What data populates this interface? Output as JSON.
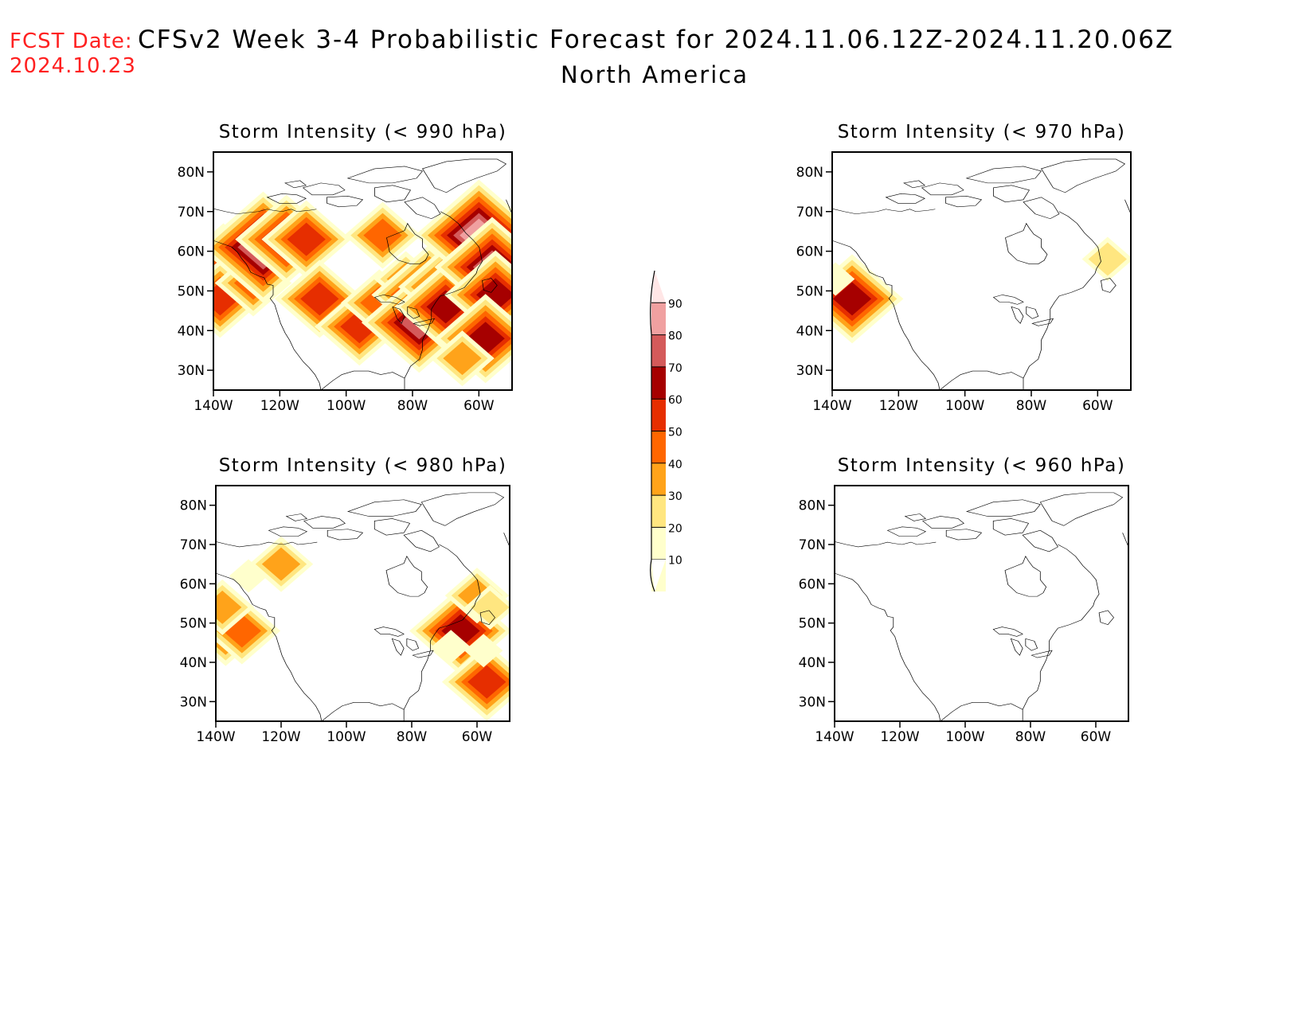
{
  "header": {
    "fcst_label": "FCST Date:",
    "fcst_date": "2024.10.23",
    "title": "CFSv2 Week 3-4 Probabilistic Forecast for 2024.11.06.12Z-2024.11.20.06Z",
    "region": "North America",
    "accent_color": "#ff2020"
  },
  "map_extent": {
    "lon": [
      -140,
      -50
    ],
    "lat": [
      25,
      85
    ]
  },
  "x_ticks": [
    "140W",
    "120W",
    "100W",
    "80W",
    "60W"
  ],
  "x_tick_values": [
    -140,
    -120,
    -100,
    -80,
    -60
  ],
  "y_ticks": [
    "80N",
    "70N",
    "60N",
    "50N",
    "40N",
    "30N"
  ],
  "y_tick_values": [
    80,
    70,
    60,
    50,
    40,
    30
  ],
  "panels": [
    {
      "title": "Storm Intensity (< 990 hPa)",
      "blobs": [
        {
          "lon": -137,
          "lat": 53,
          "value": 85
        },
        {
          "lon": -133,
          "lat": 56,
          "value": 65
        },
        {
          "lon": -138,
          "lat": 48,
          "value": 55
        },
        {
          "lon": -128,
          "lat": 52,
          "value": 45
        },
        {
          "lon": -125,
          "lat": 61,
          "value": 85
        },
        {
          "lon": -118,
          "lat": 63,
          "value": 65
        },
        {
          "lon": -112,
          "lat": 63,
          "value": 55
        },
        {
          "lon": -108,
          "lat": 48,
          "value": 55
        },
        {
          "lon": -96,
          "lat": 41,
          "value": 55
        },
        {
          "lon": -90,
          "lat": 47,
          "value": 45
        },
        {
          "lon": -89,
          "lat": 64,
          "value": 40
        },
        {
          "lon": -82,
          "lat": 53,
          "value": 30
        },
        {
          "lon": -75,
          "lat": 49,
          "value": 75
        },
        {
          "lon": -78,
          "lat": 42,
          "value": 70
        },
        {
          "lon": -65,
          "lat": 51,
          "value": 85
        },
        {
          "lon": -70,
          "lat": 46,
          "value": 60
        },
        {
          "lon": -60,
          "lat": 64,
          "value": 85
        },
        {
          "lon": -56,
          "lat": 56,
          "value": 70
        },
        {
          "lon": -55,
          "lat": 49,
          "value": 60
        },
        {
          "lon": -58,
          "lat": 38,
          "value": 65
        },
        {
          "lon": -65,
          "lat": 33,
          "value": 35
        }
      ]
    },
    {
      "title": "Storm Intensity (< 970 hPa)",
      "blobs": [
        {
          "lon": -134,
          "lat": 48,
          "value": 65
        },
        {
          "lon": -139,
          "lat": 53,
          "value": 15
        },
        {
          "lon": -57,
          "lat": 58,
          "value": 25
        }
      ]
    },
    {
      "title": "Storm Intensity (< 980 hPa)",
      "blobs": [
        {
          "lon": -137,
          "lat": 49,
          "value": 55
        },
        {
          "lon": -132,
          "lat": 48,
          "value": 45
        },
        {
          "lon": -138,
          "lat": 54,
          "value": 35
        },
        {
          "lon": -120,
          "lat": 65,
          "value": 35
        },
        {
          "lon": -130,
          "lat": 62,
          "value": 15
        },
        {
          "lon": -65,
          "lat": 48,
          "value": 65
        },
        {
          "lon": -60,
          "lat": 57,
          "value": 30
        },
        {
          "lon": -56,
          "lat": 54,
          "value": 20
        },
        {
          "lon": -57,
          "lat": 35,
          "value": 55
        },
        {
          "lon": -68,
          "lat": 44,
          "value": 15
        },
        {
          "lon": -58,
          "lat": 43,
          "value": 15
        }
      ]
    },
    {
      "title": "Storm Intensity (< 960 hPa)",
      "blobs": []
    }
  ],
  "colorbar": {
    "labels": [
      "90",
      "80",
      "70",
      "60",
      "50",
      "40",
      "30",
      "20",
      "10"
    ],
    "levels": [
      10,
      20,
      30,
      40,
      50,
      60,
      70,
      80,
      90
    ],
    "colors": [
      "#ffffcc",
      "#ffe680",
      "#ffa31a",
      "#ff6600",
      "#e62e00",
      "#a60000",
      "#d45a5a",
      "#f0a0a0",
      "#ffe6e6"
    ]
  }
}
